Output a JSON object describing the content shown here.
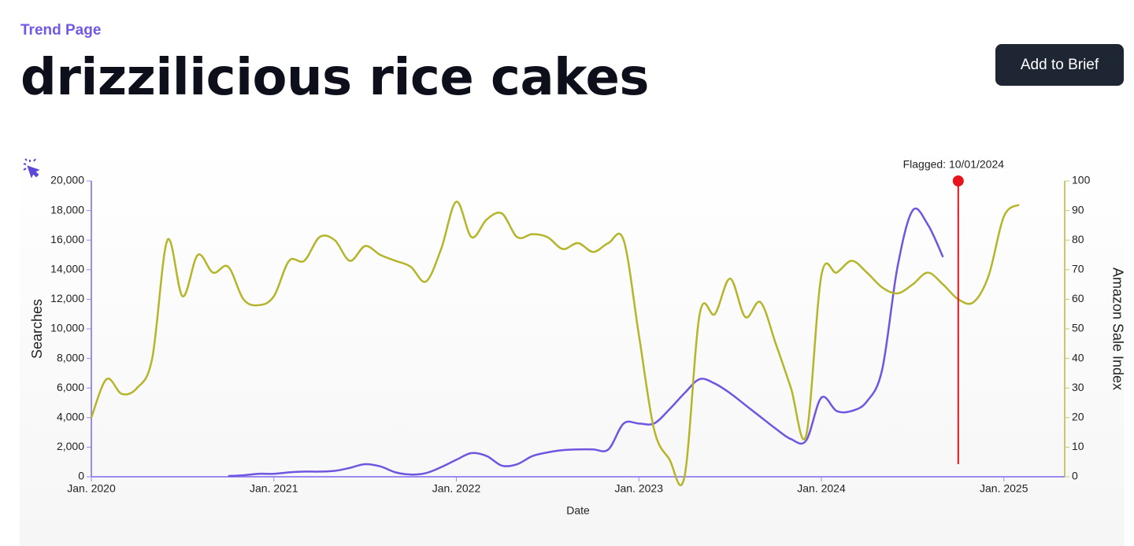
{
  "header": {
    "breadcrumb": "Trend Page",
    "title": "drizzilicious rice cakes",
    "button": "Add to Brief"
  },
  "chart_data": {
    "type": "line",
    "x": [
      "2020-01",
      "2020-02",
      "2020-03",
      "2020-04",
      "2020-05",
      "2020-06",
      "2020-07",
      "2020-08",
      "2020-09",
      "2020-10",
      "2020-11",
      "2020-12",
      "2021-01",
      "2021-02",
      "2021-03",
      "2021-04",
      "2021-05",
      "2021-06",
      "2021-07",
      "2021-08",
      "2021-09",
      "2021-10",
      "2021-11",
      "2021-12",
      "2022-01",
      "2022-02",
      "2022-03",
      "2022-04",
      "2022-05",
      "2022-06",
      "2022-07",
      "2022-08",
      "2022-09",
      "2022-10",
      "2022-11",
      "2022-12",
      "2023-01",
      "2023-02",
      "2023-03",
      "2023-04",
      "2023-05",
      "2023-06",
      "2023-07",
      "2023-08",
      "2023-09",
      "2023-10",
      "2023-11",
      "2023-12",
      "2024-01",
      "2024-02",
      "2024-03",
      "2024-04",
      "2024-05",
      "2024-06",
      "2024-07",
      "2024-08",
      "2024-09",
      "2024-10",
      "2024-11",
      "2024-12",
      "2025-01",
      "2025-02"
    ],
    "series": [
      {
        "color": "#7055e0",
        "values": [
          null,
          null,
          null,
          null,
          null,
          null,
          null,
          null,
          null,
          50,
          100,
          200,
          200,
          300,
          350,
          350,
          400,
          600,
          850,
          700,
          300,
          150,
          250,
          650,
          1150,
          1600,
          1400,
          750,
          850,
          1400,
          1650,
          1800,
          1850,
          1850,
          1850,
          3600,
          3600,
          3600,
          4550,
          5650,
          6600,
          6300,
          5650,
          4850,
          4050,
          3250,
          2550,
          2450,
          5350,
          4450,
          4450,
          5100,
          7250,
          14150,
          18000,
          17050,
          14850,
          null,
          null,
          null,
          null,
          null
        ]
      },
      {
        "color": "#b5b52a",
        "axis": "y2",
        "values": [
          20,
          33,
          28,
          30,
          40,
          80,
          61,
          75,
          69,
          71,
          60,
          58,
          61,
          73,
          73,
          81,
          80,
          73,
          78,
          75,
          73,
          71,
          66,
          77,
          93,
          81,
          87,
          89,
          81,
          82,
          81,
          77,
          79,
          76,
          79,
          80,
          48,
          16,
          6,
          0,
          55,
          55,
          67,
          54,
          59,
          45,
          30,
          14,
          68,
          69,
          73,
          69,
          64,
          62,
          65,
          69,
          65,
          60,
          59,
          68,
          88,
          92
        ]
      }
    ],
    "xlabel": "Date",
    "ylabel": "Searches",
    "y2label": "Amazon Sale Index",
    "xlim": [
      "2020-01",
      "2025-05"
    ],
    "xticks": [
      {
        "value": "2020-01",
        "label": "Jan. 2020"
      },
      {
        "value": "2021-01",
        "label": "Jan. 2021"
      },
      {
        "value": "2022-01",
        "label": "Jan. 2022"
      },
      {
        "value": "2023-01",
        "label": "Jan. 2023"
      },
      {
        "value": "2024-01",
        "label": "Jan. 2024"
      },
      {
        "value": "2025-01",
        "label": "Jan. 2025"
      }
    ],
    "ylim": [
      0,
      20000
    ],
    "yticks": [
      0,
      {
        "value": 2000,
        "label": "2,000"
      },
      {
        "value": 4000,
        "label": "4,000"
      },
      {
        "value": 6000,
        "label": "6,000"
      },
      {
        "value": 8000,
        "label": "8,000"
      },
      {
        "value": 10000,
        "label": "10,000"
      },
      {
        "value": 12000,
        "label": "12,000"
      },
      {
        "value": 14000,
        "label": "14,000"
      },
      {
        "value": 16000,
        "label": "16,000"
      },
      {
        "value": 18000,
        "label": "18,000"
      },
      {
        "value": 20000,
        "label": "20,000"
      }
    ],
    "y2lim": [
      0,
      100
    ],
    "y2ticks": [
      0,
      10,
      20,
      30,
      40,
      50,
      60,
      70,
      80,
      90,
      100
    ],
    "annotation": {
      "text": "Flagged: 10/01/2024",
      "x": "2024-10",
      "color": "#e8141c"
    }
  }
}
